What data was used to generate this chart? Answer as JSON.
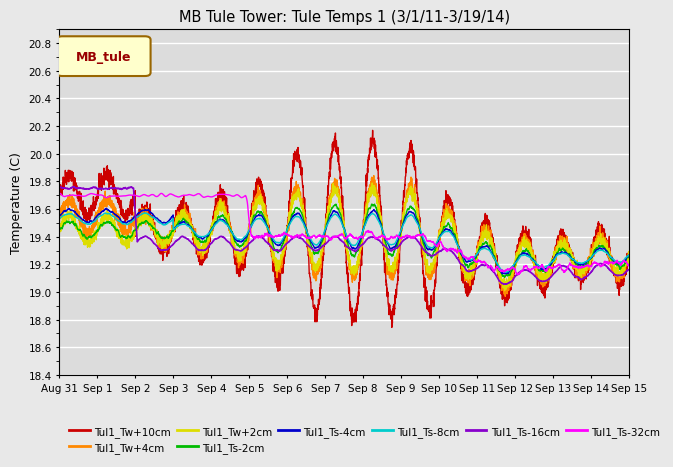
{
  "title": "MB Tule Tower: Tule Temps 1 (3/1/11-3/19/14)",
  "ylabel": "Temperature (C)",
  "xlabel": "",
  "ylim": [
    18.4,
    20.9
  ],
  "yticks": [
    18.4,
    18.6,
    18.8,
    19.0,
    19.2,
    19.4,
    19.6,
    19.8,
    20.0,
    20.2,
    20.4,
    20.6,
    20.8
  ],
  "bg_color": "#e8e8e8",
  "plot_bg": "#dcdcdc",
  "legend_box": {
    "label": "MB_tule",
    "facecolor": "#ffffcc",
    "edgecolor": "#996600",
    "textcolor": "#990000"
  },
  "series": [
    {
      "label": "Tul1_Tw+10cm",
      "color": "#cc0000",
      "lw": 1.0
    },
    {
      "label": "Tul1_Tw+4cm",
      "color": "#ff8800",
      "lw": 1.0
    },
    {
      "label": "Tul1_Tw+2cm",
      "color": "#dddd00",
      "lw": 1.0
    },
    {
      "label": "Tul1_Ts-2cm",
      "color": "#00bb00",
      "lw": 1.0
    },
    {
      "label": "Tul1_Ts-4cm",
      "color": "#0000cc",
      "lw": 1.0
    },
    {
      "label": "Tul1_Ts-8cm",
      "color": "#00cccc",
      "lw": 1.0
    },
    {
      "label": "Tul1_Ts-16cm",
      "color": "#8800cc",
      "lw": 1.2
    },
    {
      "label": "Tul1_Ts-32cm",
      "color": "#ff00ff",
      "lw": 1.0
    }
  ],
  "xtick_labels": [
    "Aug 31",
    "Sep 1",
    "Sep 2",
    "Sep 3",
    "Sep 4",
    "Sep 5",
    "Sep 6",
    "Sep 7",
    "Sep 8",
    "Sep 9",
    "Sep 10",
    "Sep 11",
    "Sep 12",
    "Sep 13",
    "Sep 14",
    "Sep 15"
  ],
  "n_points": 3000
}
